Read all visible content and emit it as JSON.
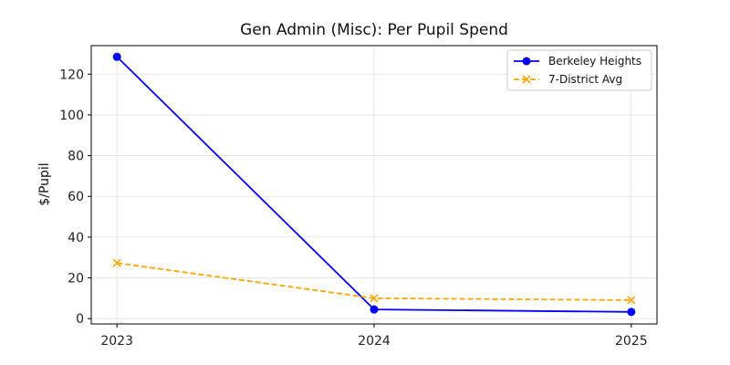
{
  "chart_data": {
    "type": "line",
    "title": "Gen Admin (Misc): Per Pupil Spend",
    "xlabel": "",
    "ylabel": "$/Pupil",
    "x": [
      2023,
      2024,
      2025
    ],
    "xlim": [
      2022.9,
      2025.1
    ],
    "ylim": [
      -2.6,
      134
    ],
    "yticks": [
      0,
      20,
      40,
      60,
      80,
      100,
      120
    ],
    "grid": true,
    "legend": "top-right",
    "series": [
      {
        "name": "Berkeley Heights",
        "values": [
          128.5,
          4.5,
          3.3
        ],
        "color": "#0000ff",
        "marker": "circle",
        "linestyle": "solid"
      },
      {
        "name": "7-District Avg",
        "values": [
          27.3,
          10.0,
          9.1
        ],
        "color": "#ffa500",
        "marker": "x",
        "linestyle": "dashed"
      }
    ]
  }
}
